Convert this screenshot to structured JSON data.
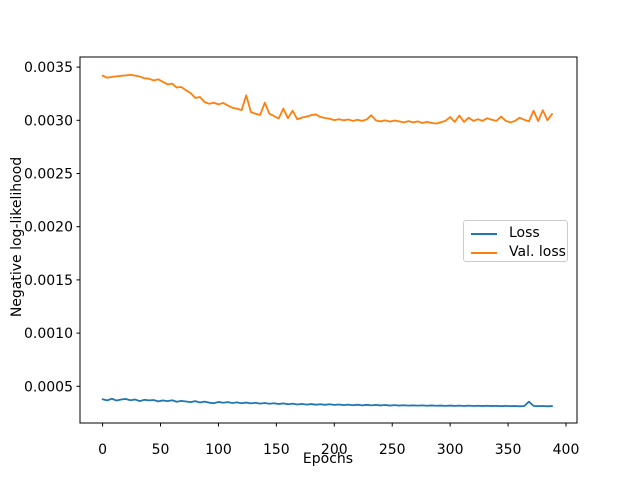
{
  "colors": {
    "background": "#ffffff",
    "axis": "#000000",
    "text": "#000000",
    "legend_border": "#cccccc",
    "loss_line": "#1f77b4",
    "val_loss_line": "#ff7f0e"
  },
  "chart_data": {
    "type": "line",
    "title": "",
    "xlabel": "Epochs",
    "ylabel": "Negative log-likelihood",
    "xlim": [
      -19.5,
      409.5
    ],
    "ylim": [
      0.000155,
      0.003595
    ],
    "xticks": [
      0,
      50,
      100,
      150,
      200,
      250,
      300,
      350,
      400
    ],
    "yticks": [
      0.0005,
      0.001,
      0.0015,
      0.002,
      0.0025,
      0.003,
      0.0035
    ],
    "ytick_labels": [
      "0.0005",
      "0.0010",
      "0.0015",
      "0.0020",
      "0.0025",
      "0.0030",
      "0.0035"
    ],
    "grid": false,
    "legend": {
      "position": "center-right",
      "entries": [
        "Loss",
        "Val. loss"
      ]
    },
    "x": [
      0,
      4,
      8,
      12,
      16,
      20,
      24,
      28,
      32,
      36,
      40,
      44,
      48,
      52,
      56,
      60,
      64,
      68,
      72,
      76,
      80,
      84,
      88,
      92,
      96,
      100,
      104,
      108,
      112,
      116,
      120,
      124,
      128,
      132,
      136,
      140,
      144,
      148,
      152,
      156,
      160,
      164,
      168,
      172,
      176,
      180,
      184,
      188,
      192,
      196,
      200,
      204,
      208,
      212,
      216,
      220,
      224,
      228,
      232,
      236,
      240,
      244,
      248,
      252,
      256,
      260,
      264,
      268,
      272,
      276,
      280,
      284,
      288,
      292,
      296,
      300,
      304,
      308,
      312,
      316,
      320,
      324,
      328,
      332,
      336,
      340,
      344,
      348,
      352,
      356,
      360,
      364,
      368,
      372,
      376,
      380,
      384,
      388
    ],
    "series": [
      {
        "name": "Loss",
        "color": "#1f77b4",
        "values": [
          0.000378,
          0.000368,
          0.000383,
          0.000366,
          0.000376,
          0.000381,
          0.000369,
          0.000376,
          0.000361,
          0.000373,
          0.000368,
          0.000371,
          0.000358,
          0.000367,
          0.000361,
          0.000369,
          0.000355,
          0.000363,
          0.000357,
          0.000351,
          0.000361,
          0.000348,
          0.000356,
          0.000346,
          0.000341,
          0.000353,
          0.000345,
          0.000351,
          0.000343,
          0.000349,
          0.000341,
          0.000347,
          0.000339,
          0.000345,
          0.000337,
          0.000343,
          0.000336,
          0.000341,
          0.000334,
          0.000339,
          0.000331,
          0.000337,
          0.000329,
          0.000335,
          0.000328,
          0.000333,
          0.000327,
          0.000331,
          0.000326,
          0.000331,
          0.000325,
          0.000329,
          0.000323,
          0.000328,
          0.000322,
          0.000327,
          0.000321,
          0.000326,
          0.000321,
          0.000325,
          0.00032,
          0.000324,
          0.000319,
          0.000323,
          0.000319,
          0.000322,
          0.000318,
          0.000321,
          0.000318,
          0.000321,
          0.000317,
          0.00032,
          0.000317,
          0.000319,
          0.000316,
          0.000319,
          0.000316,
          0.000318,
          0.000315,
          0.000318,
          0.000315,
          0.000317,
          0.000314,
          0.000317,
          0.000314,
          0.000316,
          0.000313,
          0.000316,
          0.000313,
          0.000315,
          0.000312,
          0.000315,
          0.000355,
          0.000316,
          0.000313,
          0.000315,
          0.000312,
          0.000314
        ]
      },
      {
        "name": "Val. loss",
        "color": "#ff7f0e",
        "values": [
          0.00342,
          0.0034,
          0.003408,
          0.003413,
          0.003418,
          0.003422,
          0.003428,
          0.00342,
          0.003412,
          0.003395,
          0.003391,
          0.003375,
          0.003385,
          0.003362,
          0.003338,
          0.003345,
          0.003308,
          0.003313,
          0.003282,
          0.003255,
          0.00321,
          0.003219,
          0.003172,
          0.003155,
          0.003165,
          0.00315,
          0.003163,
          0.00314,
          0.003118,
          0.00311,
          0.003095,
          0.003235,
          0.003078,
          0.003062,
          0.00305,
          0.003165,
          0.003062,
          0.00304,
          0.003017,
          0.00311,
          0.00302,
          0.00309,
          0.00301,
          0.003025,
          0.003035,
          0.003048,
          0.003055,
          0.003032,
          0.003022,
          0.003015,
          0.003002,
          0.00301,
          0.003,
          0.003008,
          0.002995,
          0.003005,
          0.002995,
          0.003008,
          0.003048,
          0.002998,
          0.00299,
          0.003,
          0.002988,
          0.002998,
          0.00299,
          0.00298,
          0.002992,
          0.00298,
          0.00299,
          0.002975,
          0.002985,
          0.002975,
          0.00297,
          0.002982,
          0.002995,
          0.00303,
          0.002985,
          0.003045,
          0.002985,
          0.003025,
          0.002995,
          0.00301,
          0.002995,
          0.00302,
          0.003005,
          0.002995,
          0.003035,
          0.002995,
          0.00298,
          0.002995,
          0.003025,
          0.003005,
          0.00299,
          0.00309,
          0.002992,
          0.003095,
          0.003,
          0.00306
        ]
      }
    ]
  }
}
